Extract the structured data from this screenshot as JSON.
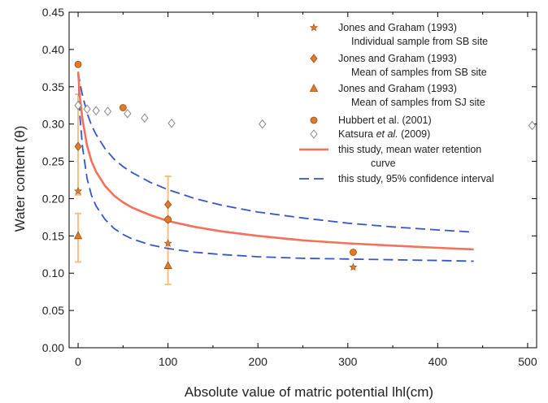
{
  "chart_data": {
    "type": "scatter",
    "title": "",
    "xlabel": "Absolute value of  matric potential lhl(cm)",
    "ylabel": "Water content (θ)",
    "xlim": [
      -10,
      510
    ],
    "ylim": [
      0,
      0.45
    ],
    "x_ticks": [
      "0",
      "100",
      "200",
      "300",
      "400",
      "500"
    ],
    "y_ticks": [
      "0.00",
      "0.05",
      "0.10",
      "0.15",
      "0.20",
      "0.25",
      "0.30",
      "0.35",
      "0.40",
      "0.45"
    ],
    "grid": false,
    "legend_position": "top-right",
    "colors": {
      "orange_marker": "#e07b2c",
      "marker_edge": "#9a4d12",
      "error_bar": "#f6bf86",
      "fit_line": "#f4715a",
      "ci_line": "#3656c8",
      "katsura_marker": "#888888"
    },
    "series": [
      {
        "name": "Jones and Graham (1993)",
        "name_line2": "Individual sample from SB site",
        "marker": "star",
        "points": [
          [
            0,
            0.21
          ],
          [
            100,
            0.14
          ],
          [
            306,
            0.108
          ]
        ]
      },
      {
        "name": "Jones and Graham (1993)",
        "name_line2": "Mean of samples from SB site",
        "marker": "diamond",
        "points": [
          [
            0,
            0.27
          ],
          [
            100,
            0.192
          ],
          [
            100,
            0.172
          ]
        ]
      },
      {
        "name": "Jones and Graham (1993)",
        "name_line2": "Mean of samples from SJ site",
        "marker": "triangle",
        "points": [
          [
            0,
            0.15
          ],
          [
            100,
            0.11
          ]
        ]
      },
      {
        "name": "Hubbert et al. (2001)",
        "marker": "circle",
        "points": [
          [
            0,
            0.38
          ],
          [
            50,
            0.322
          ],
          [
            100,
            0.172
          ],
          [
            306,
            0.128
          ]
        ]
      },
      {
        "name": "Katsura et al. (2009)",
        "name_italic": "et al.",
        "marker": "open-diamond",
        "points": [
          [
            0,
            0.325
          ],
          [
            10,
            0.32
          ],
          [
            20,
            0.318
          ],
          [
            33,
            0.317
          ],
          [
            55,
            0.314
          ],
          [
            74,
            0.308
          ],
          [
            104,
            0.301
          ],
          [
            205,
            0.3
          ],
          [
            505,
            0.298
          ]
        ]
      },
      {
        "name": "this study, mean water retention",
        "name_line2": "curve",
        "style": "solid-line",
        "x": [
          0,
          2,
          5,
          10,
          15,
          20,
          30,
          40,
          50,
          60,
          80,
          100,
          130,
          160,
          200,
          250,
          300,
          350,
          400,
          440
        ],
        "y": [
          0.37,
          0.336,
          0.305,
          0.271,
          0.25,
          0.236,
          0.217,
          0.204,
          0.195,
          0.188,
          0.178,
          0.17,
          0.162,
          0.156,
          0.15,
          0.144,
          0.14,
          0.137,
          0.134,
          0.132
        ]
      },
      {
        "name": "this study, 95% confidence interval",
        "style": "dashed-line",
        "upper": {
          "x": [
            0,
            2,
            5,
            10,
            15,
            20,
            30,
            40,
            50,
            60,
            80,
            100,
            130,
            160,
            200,
            250,
            300,
            350,
            400,
            440
          ],
          "y": [
            0.37,
            0.355,
            0.338,
            0.315,
            0.298,
            0.286,
            0.267,
            0.253,
            0.243,
            0.235,
            0.222,
            0.212,
            0.2,
            0.191,
            0.182,
            0.174,
            0.167,
            0.162,
            0.158,
            0.155
          ]
        },
        "lower": {
          "x": [
            0,
            2,
            5,
            10,
            15,
            20,
            30,
            40,
            50,
            60,
            80,
            100,
            130,
            160,
            200,
            250,
            300,
            350,
            400,
            440
          ],
          "y": [
            0.37,
            0.31,
            0.268,
            0.227,
            0.204,
            0.19,
            0.172,
            0.16,
            0.152,
            0.146,
            0.138,
            0.133,
            0.128,
            0.125,
            0.122,
            0.12,
            0.119,
            0.118,
            0.117,
            0.116
          ]
        }
      }
    ],
    "error_bars": [
      {
        "x": 0,
        "low": 0.115,
        "high": 0.18
      },
      {
        "x": 0,
        "low": 0.205,
        "high": 0.34
      },
      {
        "x": 100,
        "low": 0.085,
        "high": 0.23
      }
    ]
  }
}
